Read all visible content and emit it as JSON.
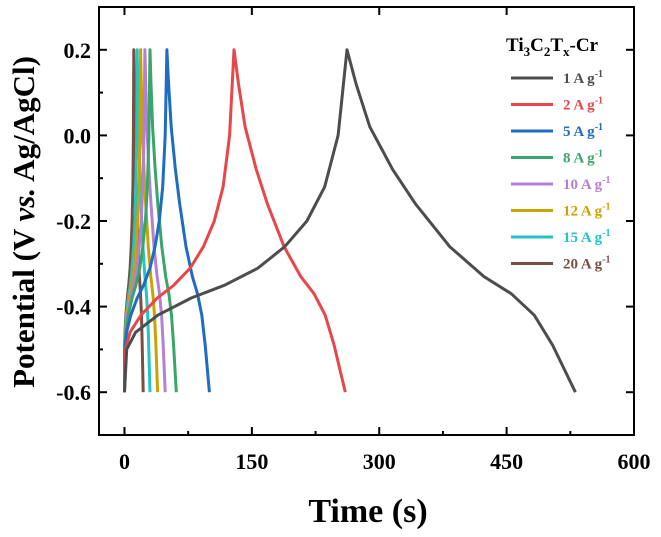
{
  "chart_data": {
    "type": "line",
    "title": "",
    "xlabel": "Time (s)",
    "ylabel_parts": [
      "Potential (V ",
      "vs.",
      " Ag/AgCl)"
    ],
    "xlim": [
      -30,
      600
    ],
    "ylim": [
      -0.7,
      0.3
    ],
    "xticks": [
      0,
      150,
      300,
      450,
      600
    ],
    "xtick_labels": [
      "0",
      "150",
      "300",
      "450",
      "600"
    ],
    "yticks": [
      -0.6,
      -0.4,
      -0.2,
      0.0,
      0.2
    ],
    "ytick_labels": [
      "-0.6",
      "-0.4",
      "-0.2",
      "0.0",
      "0.2"
    ],
    "legend_title": {
      "base": "Ti",
      "sub1": "3",
      "mid": "C",
      "sub2": "2",
      "t": "T",
      "sub3": "x",
      "suffix": "-Cr"
    },
    "legend_position": "top-right",
    "series": [
      {
        "name": "1 A g",
        "sup": "-1",
        "color": "#4d4d4d",
        "peak": 262,
        "end": 531
      },
      {
        "name": "2 A g",
        "sup": "-1",
        "color": "#e8474a",
        "peak": 129,
        "end": 260
      },
      {
        "name": "5 A g",
        "sup": "-1",
        "color": "#1f6cc2",
        "peak": 50,
        "end": 100
      },
      {
        "name": "8 A g",
        "sup": "-1",
        "color": "#3aa56a",
        "peak": 30,
        "end": 61
      },
      {
        "name": "10 A g",
        "sup": "-1",
        "color": "#b57fd6",
        "peak": 24,
        "end": 48
      },
      {
        "name": "12 A g",
        "sup": "-1",
        "color": "#c9a400",
        "peak": 19,
        "end": 39
      },
      {
        "name": "15 A g",
        "sup": "-1",
        "color": "#23c4c4",
        "peak": 15,
        "end": 30
      },
      {
        "name": "20 A g",
        "sup": "-1",
        "color": "#7a4f43",
        "peak": 11,
        "end": 22
      }
    ]
  }
}
